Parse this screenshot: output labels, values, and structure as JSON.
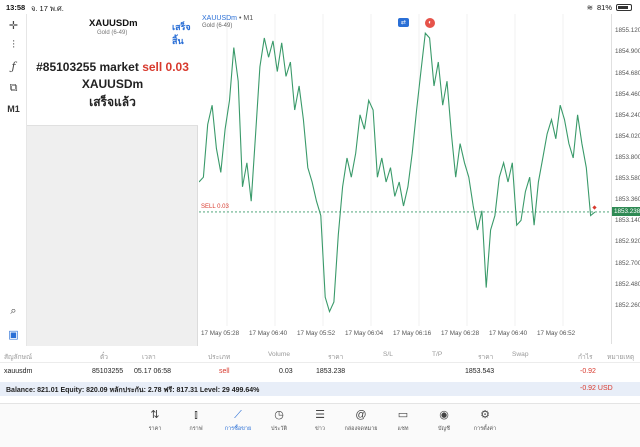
{
  "status_bar": {
    "time": "13:58",
    "date": "จ. 17 พ.ศ.",
    "battery": "81%"
  },
  "order": {
    "symbol": "XAUUSDm",
    "symbol_sub": "Gold (6-49)",
    "done_label": "เสร็จสิ้น",
    "message_prefix": "#85103255 market ",
    "message_sell": "sell 0.03",
    "message_symbol": "XAUUSDm",
    "message_status": "เสร็จแล้ว"
  },
  "toolbar": {
    "timeframe": "M1"
  },
  "chart": {
    "symbol": "XAUUSDm",
    "timeframe": "• M1",
    "subtitle": "Gold (6-49)",
    "sell_label": "SELL 0.03",
    "current_price": "1853.238"
  },
  "chart_data": {
    "type": "line",
    "y_ticks": [
      "1855.120",
      "1854.900",
      "1854.680",
      "1854.460",
      "1854.240",
      "1854.020",
      "1853.800",
      "1853.580",
      "1853.360",
      "1853.140",
      "1852.920",
      "1852.700",
      "1852.480",
      "1852.260"
    ],
    "x_ticks": [
      "17 May 05:28",
      "17 May 06:40",
      "17 May 05:52",
      "17 May 06:04",
      "17 May 06:16",
      "17 May 06:28",
      "17 May 06:40",
      "17 May 06:52"
    ],
    "ylim": [
      1852.05,
      1855.3
    ],
    "sell_level": 1853.238,
    "values": [
      1853.55,
      1853.6,
      1854.15,
      1854.35,
      1853.9,
      1853.65,
      1854.1,
      1854.4,
      1854.95,
      1854.6,
      1853.5,
      1853.75,
      1853.35,
      1854.05,
      1854.75,
      1855.05,
      1854.85,
      1855.02,
      1854.7,
      1855.0,
      1854.65,
      1854.8,
      1854.3,
      1854.55,
      1854.2,
      1853.7,
      1853.55,
      1853.35,
      1853.2,
      1852.35,
      1852.2,
      1852.3,
      1853.0,
      1853.5,
      1853.8,
      1853.6,
      1853.85,
      1854.25,
      1854.1,
      1854.4,
      1854.3,
      1853.6,
      1853.8,
      1853.55,
      1853.7,
      1853.4,
      1853.55,
      1853.3,
      1853.5,
      1853.85,
      1854.3,
      1854.7,
      1855.1,
      1855.05,
      1854.55,
      1854.8,
      1854.35,
      1854.6,
      1854.05,
      1853.6,
      1853.95,
      1853.75,
      1853.6,
      1853.3,
      1853.05,
      1853.25,
      1852.45,
      1853.05,
      1853.2,
      1853.6,
      1853.75,
      1853.55,
      1853.75,
      1853.1,
      1853.15,
      1853.45,
      1853.6,
      1853.1,
      1853.55,
      1853.8,
      1854.05,
      1854.2,
      1854.0,
      1854.35,
      1854.2,
      1853.95,
      1853.8,
      1854.25,
      1853.95,
      1853.7,
      1853.2,
      1853.238
    ]
  },
  "positions": {
    "headers": {
      "symbol": "สัญลักษณ์",
      "ticket": "ตั๋ว",
      "time": "เวลา",
      "type": "ประเภท",
      "volume": "Volume",
      "price": "ราคา",
      "sl": "S/L",
      "tp": "T/P",
      "cur_price": "ราคา",
      "swap": "Swap",
      "profit": "กำไร",
      "comment": "หมายเหตุ"
    },
    "row": {
      "symbol": "xauusdm",
      "ticket": "85103255",
      "time": "05.17 06:58",
      "type": "sell",
      "volume": "0.03",
      "price": "1853.238",
      "cur_price": "1853.543",
      "profit": "-0.92"
    }
  },
  "account": {
    "summary": "Balance: 821.01  Equity: 820.09  หลักประกัน: 2.78  ฟรี: 817.31  Level: 29 499.64%",
    "profit_total": "-0.92  USD"
  },
  "nav": [
    {
      "label": "ราคา",
      "icon": "arrows-updown-icon"
    },
    {
      "label": "กราฟ",
      "icon": "candles-icon"
    },
    {
      "label": "การซื้อขาย",
      "icon": "trade-chart-icon"
    },
    {
      "label": "ประวัติ",
      "icon": "history-icon"
    },
    {
      "label": "ข่าว",
      "icon": "news-icon"
    },
    {
      "label": "กล่องจดหมาย",
      "icon": "mail-icon"
    },
    {
      "label": "แชท",
      "icon": "chat-icon"
    },
    {
      "label": "บัญชี",
      "icon": "account-icon"
    },
    {
      "label": "การตั้งค่า",
      "icon": "gear-icon"
    }
  ]
}
